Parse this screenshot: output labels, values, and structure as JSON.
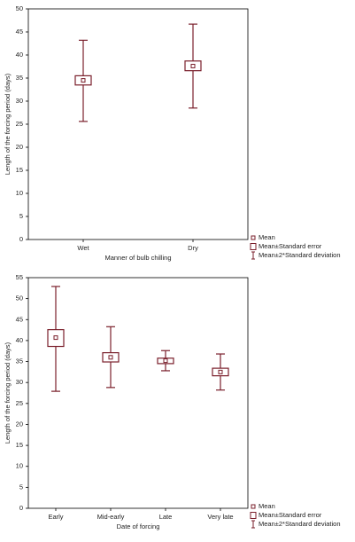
{
  "chart_data": [
    {
      "type": "box",
      "ylabel": "Length of the forcing period (days)",
      "xlabel": "Manner of bulb chilling",
      "categories": [
        "Wet",
        "Dry"
      ],
      "color": "#7a1f2b",
      "ylim": [
        0,
        50
      ],
      "yticks": [
        0,
        5,
        10,
        15,
        20,
        25,
        30,
        35,
        40,
        45,
        50
      ],
      "series": [
        {
          "name": "Mean",
          "values": [
            34.5,
            37.6
          ]
        },
        {
          "name": "Mean±Standard error",
          "low": [
            33.5,
            36.6
          ],
          "high": [
            35.5,
            38.7
          ]
        },
        {
          "name": "Mean±2*Standard deviation",
          "low": [
            25.6,
            28.5
          ],
          "high": [
            43.2,
            46.7
          ]
        }
      ]
    },
    {
      "type": "box",
      "ylabel": "Length of the forcing period (days)",
      "xlabel": "Date of forcing",
      "categories": [
        "Early",
        "Mid-early",
        "Late",
        "Very late"
      ],
      "color": "#7a1f2b",
      "ylim": [
        0,
        55
      ],
      "yticks": [
        0,
        5,
        10,
        15,
        20,
        25,
        30,
        35,
        40,
        45,
        50,
        55
      ],
      "series": [
        {
          "name": "Mean",
          "values": [
            40.7,
            36.0,
            35.2,
            32.5
          ]
        },
        {
          "name": "Mean±Standard error",
          "low": [
            38.6,
            34.9,
            34.5,
            31.6
          ],
          "high": [
            42.6,
            37.1,
            35.8,
            33.4
          ]
        },
        {
          "name": "Mean±2*Standard deviation",
          "low": [
            27.9,
            28.8,
            32.8,
            28.2
          ],
          "high": [
            52.9,
            43.3,
            37.6,
            36.8
          ]
        }
      ]
    }
  ]
}
